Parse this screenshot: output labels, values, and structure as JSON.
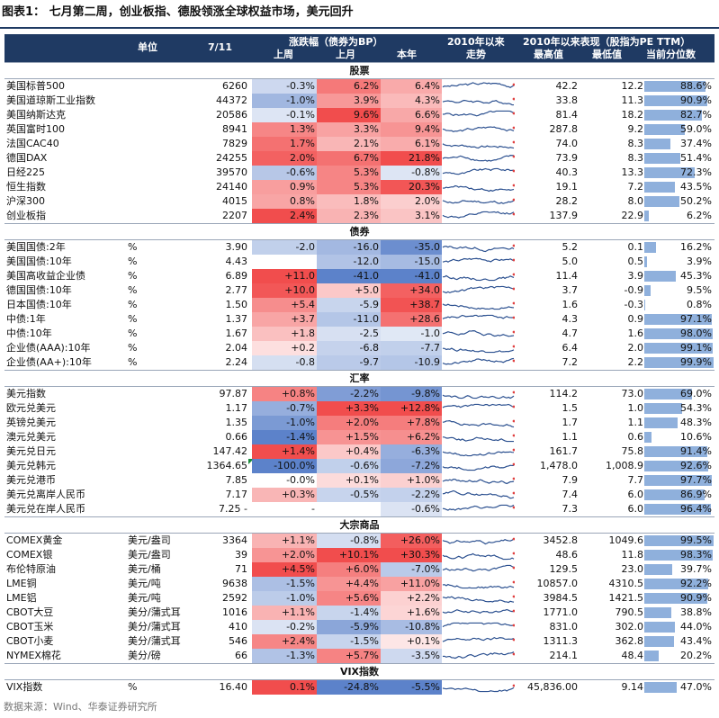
{
  "title": "图表1：  七月第二周，创业板指、德股领涨全球权益市场，美元回升",
  "source": "数据来源：Wind、华泰证券研究所",
  "header": {
    "unit": "单位",
    "date": "7/11",
    "change": "涨跌幅（债券为BP）",
    "week": "上周",
    "month": "上月",
    "ytd": "本年",
    "trend_top": "2010年以来",
    "trend_bottom": "走势",
    "stats": "2010年以来表现（股指为PE TTM）",
    "high": "最高值",
    "low": "最低值",
    "pctile": "当前分位数"
  },
  "colors": {
    "header_bg": "#1f3a63",
    "red": "#f03a3a",
    "blue": "#4a74c4",
    "pct_bar": "#8fb0dc"
  },
  "sections": [
    {
      "title": "股票",
      "rows": [
        {
          "name": "美国标普500",
          "unit": "",
          "value": "6260",
          "w": "-0.3%",
          "wn": -0.3,
          "m": "6.2%",
          "mn": 6.2,
          "y": "6.4%",
          "yn": 6.4,
          "high": "42.2",
          "low": "12.2",
          "pct": "88.6%",
          "pctn": 0.886
        },
        {
          "name": "美国道琼斯工业指数",
          "unit": "",
          "value": "44372",
          "w": "-1.0%",
          "wn": -1.0,
          "m": "3.9%",
          "mn": 3.9,
          "y": "4.3%",
          "yn": 4.3,
          "high": "33.8",
          "low": "11.3",
          "pct": "90.9%",
          "pctn": 0.909
        },
        {
          "name": "美国纳斯达克",
          "unit": "",
          "value": "20586",
          "w": "-0.1%",
          "wn": -0.1,
          "m": "9.6%",
          "mn": 9.6,
          "y": "6.6%",
          "yn": 6.6,
          "high": "81.4",
          "low": "18.2",
          "pct": "82.7%",
          "pctn": 0.827
        },
        {
          "name": "英国富时100",
          "unit": "",
          "value": "8941",
          "w": "1.3%",
          "wn": 1.3,
          "m": "3.3%",
          "mn": 3.3,
          "y": "9.4%",
          "yn": 9.4,
          "high": "287.8",
          "low": "9.2",
          "pct": "59.0%",
          "pctn": 0.59
        },
        {
          "name": "法国CAC40",
          "unit": "",
          "value": "7829",
          "w": "1.7%",
          "wn": 1.7,
          "m": "2.1%",
          "mn": 2.1,
          "y": "6.1%",
          "yn": 6.1,
          "high": "74.0",
          "low": "8.3",
          "pct": "37.4%",
          "pctn": 0.374
        },
        {
          "name": "德国DAX",
          "unit": "",
          "value": "24255",
          "w": "2.0%",
          "wn": 2.0,
          "m": "6.7%",
          "mn": 6.7,
          "y": "21.8%",
          "yn": 21.8,
          "high": "73.9",
          "low": "8.3",
          "pct": "51.4%",
          "pctn": 0.514
        },
        {
          "name": "日经225",
          "unit": "",
          "value": "39570",
          "w": "-0.6%",
          "wn": -0.6,
          "m": "5.3%",
          "mn": 5.3,
          "y": "-0.8%",
          "yn": -0.8,
          "high": "40.3",
          "low": "13.3",
          "pct": "72.3%",
          "pctn": 0.723
        },
        {
          "name": "恒生指数",
          "unit": "",
          "value": "24140",
          "w": "0.9%",
          "wn": 0.9,
          "m": "5.3%",
          "mn": 5.3,
          "y": "20.3%",
          "yn": 20.3,
          "high": "19.1",
          "low": "7.2",
          "pct": "43.5%",
          "pctn": 0.435
        },
        {
          "name": "沪深300",
          "unit": "",
          "value": "4015",
          "w": "0.8%",
          "wn": 0.8,
          "m": "1.8%",
          "mn": 1.8,
          "y": "2.0%",
          "yn": 2.0,
          "high": "28.2",
          "low": "8.0",
          "pct": "50.2%",
          "pctn": 0.502
        },
        {
          "name": "创业板指",
          "unit": "",
          "value": "2207",
          "w": "2.4%",
          "wn": 2.4,
          "m": "2.3%",
          "mn": 2.3,
          "y": "3.1%",
          "yn": 3.1,
          "high": "137.9",
          "low": "22.9",
          "pct": "6.2%",
          "pctn": 0.062
        }
      ]
    },
    {
      "title": "债券",
      "rows": [
        {
          "name": "美国国债:2年",
          "unit": "%",
          "value": "3.90",
          "w": "-2.0",
          "wn": -2.0,
          "m": "-16.0",
          "mn": -16.0,
          "y": "-35.0",
          "yn": -35.0,
          "high": "5.2",
          "low": "0.1",
          "pct": "16.2%",
          "pctn": 0.162
        },
        {
          "name": "美国国债:10年",
          "unit": "%",
          "value": "4.43",
          "w": "",
          "wn": 0,
          "m": "-12.0",
          "mn": -12.0,
          "y": "-15.0",
          "yn": -15.0,
          "high": "5.0",
          "low": "0.5",
          "pct": "3.9%",
          "pctn": 0.039
        },
        {
          "name": "美国高收益企业债",
          "unit": "%",
          "value": "6.89",
          "w": "+11.0",
          "wn": 11.0,
          "m": "-41.0",
          "mn": -41.0,
          "y": "-41.0",
          "yn": -41.0,
          "high": "11.4",
          "low": "3.9",
          "pct": "45.3%",
          "pctn": 0.453
        },
        {
          "name": "德国国债:10年",
          "unit": "%",
          "value": "2.77",
          "w": "+10.0",
          "wn": 10.0,
          "m": "+5.0",
          "mn": 5.0,
          "y": "+34.0",
          "yn": 34.0,
          "high": "3.7",
          "low": "-0.9",
          "pct": "9.5%",
          "pctn": 0.095
        },
        {
          "name": "日本国债:10年",
          "unit": "%",
          "value": "1.50",
          "w": "+5.4",
          "wn": 5.4,
          "m": "-5.9",
          "mn": -5.9,
          "y": "+38.7",
          "yn": 38.7,
          "high": "1.6",
          "low": "-0.3",
          "pct": "0.8%",
          "pctn": 0.008
        },
        {
          "name": "中债:1年",
          "unit": "%",
          "value": "1.37",
          "w": "+3.7",
          "wn": 3.7,
          "m": "-11.0",
          "mn": -11.0,
          "y": "+28.6",
          "yn": 28.6,
          "high": "4.3",
          "low": "0.9",
          "pct": "97.1%",
          "pctn": 0.971
        },
        {
          "name": "中债:10年",
          "unit": "%",
          "value": "1.67",
          "w": "+1.8",
          "wn": 1.8,
          "m": "-2.5",
          "mn": -2.5,
          "y": "-1.0",
          "yn": -1.0,
          "high": "4.7",
          "low": "1.6",
          "pct": "98.0%",
          "pctn": 0.98
        },
        {
          "name": "企业债(AAA):10年",
          "unit": "%",
          "value": "2.04",
          "w": "+0.2",
          "wn": 0.2,
          "m": "-6.8",
          "mn": -6.8,
          "y": "-7.7",
          "yn": -7.7,
          "high": "6.4",
          "low": "2.0",
          "pct": "99.1%",
          "pctn": 0.991
        },
        {
          "name": "企业债(AA+):10年",
          "unit": "%",
          "value": "2.24",
          "w": "-0.8",
          "wn": -0.8,
          "m": "-9.7",
          "mn": -9.7,
          "y": "-10.9",
          "yn": -10.9,
          "high": "7.2",
          "low": "2.2",
          "pct": "99.9%",
          "pctn": 0.999
        }
      ]
    },
    {
      "title": "汇率",
      "rows": [
        {
          "name": "美元指数",
          "unit": "",
          "value": "97.87",
          "w": "+0.8%",
          "wn": 0.8,
          "m": "-2.2%",
          "mn": -2.2,
          "y": "-9.8%",
          "yn": -9.8,
          "high": "114.2",
          "low": "73.0",
          "pct": "69.0%",
          "pctn": 0.69
        },
        {
          "name": "欧元兑美元",
          "unit": "",
          "value": "1.17",
          "w": "-0.7%",
          "wn": -0.7,
          "m": "+3.3%",
          "mn": 3.3,
          "y": "+12.8%",
          "yn": 12.8,
          "high": "1.5",
          "low": "1.0",
          "pct": "54.3%",
          "pctn": 0.543
        },
        {
          "name": "英镑兑美元",
          "unit": "",
          "value": "1.35",
          "w": "-1.0%",
          "wn": -1.0,
          "m": "+2.0%",
          "mn": 2.0,
          "y": "+7.8%",
          "yn": 7.8,
          "high": "1.7",
          "low": "1.1",
          "pct": "48.3%",
          "pctn": 0.483
        },
        {
          "name": "澳元兑美元",
          "unit": "",
          "value": "0.66",
          "w": "-1.4%",
          "wn": -1.4,
          "m": "+1.5%",
          "mn": 1.5,
          "y": "+6.2%",
          "yn": 6.2,
          "high": "1.1",
          "low": "0.6",
          "pct": "10.6%",
          "pctn": 0.106
        },
        {
          "name": "美元兑日元",
          "unit": "",
          "value": "147.42",
          "w": "+1.4%",
          "wn": 1.4,
          "m": "+0.4%",
          "mn": 0.4,
          "y": "-6.3%",
          "yn": -6.3,
          "high": "161.7",
          "low": "75.8",
          "pct": "91.4%",
          "pctn": 0.914
        },
        {
          "name": "美元兑韩元",
          "unit": "",
          "value": "1364.65",
          "w": "-100.0%",
          "wn": -100.0,
          "m": "-0.6%",
          "mn": -0.6,
          "y": "-7.2%",
          "yn": -7.2,
          "high": "1,478.0",
          "low": "1,008.9",
          "pct": "92.6%",
          "pctn": 0.926,
          "flag": true
        },
        {
          "name": "美元兑港币",
          "unit": "",
          "value": "7.85",
          "w": "-0.0%",
          "wn": 0,
          "m": "+0.1%",
          "mn": 0.1,
          "y": "+1.0%",
          "yn": 1.0,
          "high": "7.9",
          "low": "7.7",
          "pct": "97.7%",
          "pctn": 0.977
        },
        {
          "name": "美元兑离岸人民币",
          "unit": "",
          "value": "7.17",
          "w": "+0.3%",
          "wn": 0.3,
          "m": "-0.5%",
          "mn": -0.5,
          "y": "-2.2%",
          "yn": -2.2,
          "high": "7.4",
          "low": "6.0",
          "pct": "86.9%",
          "pctn": 0.869
        },
        {
          "name": "美元兑在岸人民币",
          "unit": "",
          "value": "7.25 -",
          "w": "-",
          "wn": 0,
          "m": "",
          "mn": 0,
          "y": "-0.6%",
          "yn": -0.6,
          "high": "7.3",
          "low": "6.0",
          "pct": "96.4%",
          "pctn": 0.964
        }
      ]
    },
    {
      "title": "大宗商品",
      "rows": [
        {
          "name": "COMEX黄金",
          "unit": "美元/盎司",
          "value": "3364",
          "w": "+1.1%",
          "wn": 1.1,
          "m": "-0.8%",
          "mn": -0.8,
          "y": "+26.0%",
          "yn": 26.0,
          "high": "3452.8",
          "low": "1049.6",
          "pct": "99.5%",
          "pctn": 0.995
        },
        {
          "name": "COMEX银",
          "unit": "美元/盎司",
          "value": "39",
          "w": "+2.0%",
          "wn": 2.0,
          "m": "+10.1%",
          "mn": 10.1,
          "y": "+30.3%",
          "yn": 30.3,
          "high": "48.6",
          "low": "11.8",
          "pct": "98.3%",
          "pctn": 0.983
        },
        {
          "name": "布伦特原油",
          "unit": "美元/桶",
          "value": "71",
          "w": "+4.5%",
          "wn": 4.5,
          "m": "+6.0%",
          "mn": 6.0,
          "y": "-7.0%",
          "yn": -7.0,
          "high": "129.5",
          "low": "23.0",
          "pct": "39.7%",
          "pctn": 0.397
        },
        {
          "name": "LME铜",
          "unit": "美元/吨",
          "value": "9638",
          "w": "-1.5%",
          "wn": -1.5,
          "m": "+4.4%",
          "mn": 4.4,
          "y": "+11.0%",
          "yn": 11.0,
          "high": "10857.0",
          "low": "4310.5",
          "pct": "92.2%",
          "pctn": 0.922
        },
        {
          "name": "LME铝",
          "unit": "美元/吨",
          "value": "2592",
          "w": "-1.0%",
          "wn": -1.0,
          "m": "+5.6%",
          "mn": 5.6,
          "y": "+2.2%",
          "yn": 2.2,
          "high": "3984.5",
          "low": "1421.5",
          "pct": "90.9%",
          "pctn": 0.909
        },
        {
          "name": "CBOT大豆",
          "unit": "美分/蒲式耳",
          "value": "1016",
          "w": "+1.1%",
          "wn": 1.1,
          "m": "-1.4%",
          "mn": -1.4,
          "y": "+1.6%",
          "yn": 1.6,
          "high": "1771.0",
          "low": "790.5",
          "pct": "38.8%",
          "pctn": 0.388
        },
        {
          "name": "CBOT玉米",
          "unit": "美分/蒲式耳",
          "value": "410",
          "w": "-0.2%",
          "wn": -0.2,
          "m": "-5.9%",
          "mn": -5.9,
          "y": "-10.8%",
          "yn": -10.8,
          "high": "831.0",
          "low": "302.0",
          "pct": "44.0%",
          "pctn": 0.44
        },
        {
          "name": "CBOT小麦",
          "unit": "美分/蒲式耳",
          "value": "546",
          "w": "+2.4%",
          "wn": 2.4,
          "m": "-1.5%",
          "mn": -1.5,
          "y": "+0.1%",
          "yn": 0.1,
          "high": "1311.3",
          "low": "362.8",
          "pct": "43.4%",
          "pctn": 0.434
        },
        {
          "name": "NYMEX棉花",
          "unit": "美分/磅",
          "value": "66",
          "w": "-1.3%",
          "wn": -1.3,
          "m": "+5.7%",
          "mn": 5.7,
          "y": "-3.5%",
          "yn": -3.5,
          "high": "214.1",
          "low": "48.4",
          "pct": "20.2%",
          "pctn": 0.202
        }
      ]
    },
    {
      "title": "VIX指数",
      "rows": [
        {
          "name": "VIX指数",
          "unit": "%",
          "value": "16.40",
          "w": "0.1%",
          "wn": 0.1,
          "m": "-24.8%",
          "mn": -24.8,
          "y": "-5.5%",
          "yn": -5.5,
          "high": "45,836.00",
          "low": "9.14",
          "pct": "47.0%",
          "pctn": 0.47
        }
      ]
    }
  ]
}
